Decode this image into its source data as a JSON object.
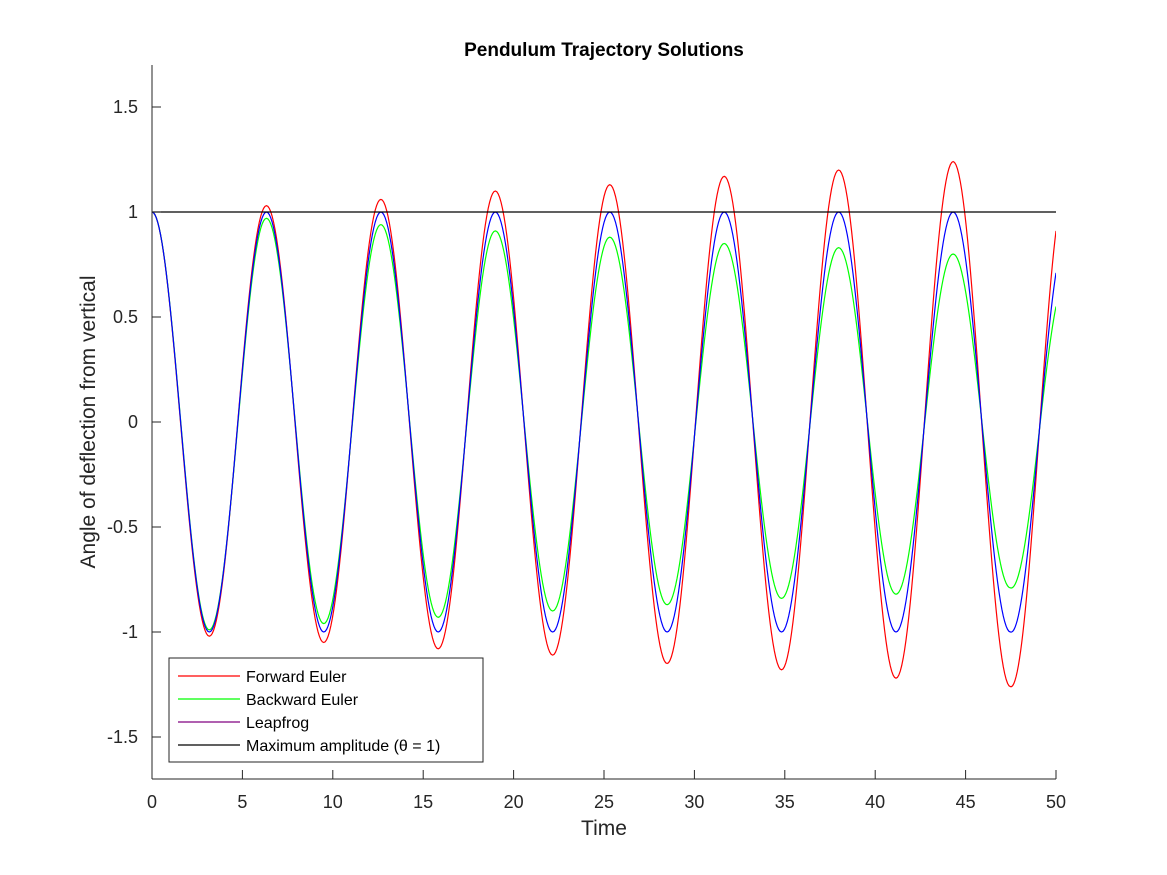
{
  "chart_data": {
    "type": "line",
    "title": "Pendulum Trajectory Solutions",
    "xlabel": "Time",
    "ylabel": "Angle of deflection from vertical",
    "xlim": [
      0,
      50
    ],
    "ylim": [
      -1.7,
      1.7
    ],
    "xticks": [
      0,
      5,
      10,
      15,
      20,
      25,
      30,
      35,
      40,
      45,
      50
    ],
    "yticks": [
      -1.5,
      -1,
      -0.5,
      0,
      0.5,
      1,
      1.5
    ],
    "ytick_labels": [
      "-1.5",
      "-1",
      "-0.5",
      "0",
      "0.5",
      "1",
      "1.5"
    ],
    "xtick_labels": [
      "0",
      "5",
      "10",
      "15",
      "20",
      "25",
      "30",
      "35",
      "40",
      "45",
      "50"
    ],
    "grid": false,
    "legend_position": "bottom-left",
    "period": 6.33,
    "series": [
      {
        "name": "Forward Euler",
        "color": "#ff0000",
        "y_at_x0": 1.0,
        "peaks": [
          {
            "x": 6.33,
            "y": 1.03
          },
          {
            "x": 12.66,
            "y": 1.06
          },
          {
            "x": 18.99,
            "y": 1.1
          },
          {
            "x": 25.32,
            "y": 1.13
          },
          {
            "x": 31.65,
            "y": 1.17
          },
          {
            "x": 37.98,
            "y": 1.2
          },
          {
            "x": 44.31,
            "y": 1.24
          }
        ],
        "troughs": [
          {
            "x": 3.17,
            "y": -1.02
          },
          {
            "x": 9.5,
            "y": -1.05
          },
          {
            "x": 15.83,
            "y": -1.08
          },
          {
            "x": 22.16,
            "y": -1.11
          },
          {
            "x": 28.49,
            "y": -1.15
          },
          {
            "x": 34.82,
            "y": -1.18
          },
          {
            "x": 41.15,
            "y": -1.22
          },
          {
            "x": 47.48,
            "y": -1.26
          }
        ],
        "y_at_x50": 0.91
      },
      {
        "name": "Backward Euler",
        "color": "#00ff00",
        "y_at_x0": 1.0,
        "peaks": [
          {
            "x": 6.33,
            "y": 0.97
          },
          {
            "x": 12.66,
            "y": 0.94
          },
          {
            "x": 18.99,
            "y": 0.91
          },
          {
            "x": 25.32,
            "y": 0.88
          },
          {
            "x": 31.65,
            "y": 0.85
          },
          {
            "x": 37.98,
            "y": 0.83
          },
          {
            "x": 44.31,
            "y": 0.8
          }
        ],
        "troughs": [
          {
            "x": 3.17,
            "y": -0.99
          },
          {
            "x": 9.5,
            "y": -0.96
          },
          {
            "x": 15.83,
            "y": -0.93
          },
          {
            "x": 22.16,
            "y": -0.9
          },
          {
            "x": 28.49,
            "y": -0.87
          },
          {
            "x": 34.82,
            "y": -0.84
          },
          {
            "x": 41.15,
            "y": -0.82
          },
          {
            "x": 47.48,
            "y": -0.79
          }
        ],
        "y_at_x50": 0.55
      },
      {
        "name": "Leapfrog",
        "color": "#0000ff",
        "legend_color": "#800080",
        "y_at_x0": 1.0,
        "peaks": [
          {
            "x": 6.33,
            "y": 1.0
          },
          {
            "x": 12.66,
            "y": 1.0
          },
          {
            "x": 18.99,
            "y": 1.0
          },
          {
            "x": 25.32,
            "y": 1.0
          },
          {
            "x": 31.65,
            "y": 1.0
          },
          {
            "x": 37.98,
            "y": 1.0
          },
          {
            "x": 44.31,
            "y": 1.0
          }
        ],
        "troughs": [
          {
            "x": 3.17,
            "y": -1.0
          },
          {
            "x": 9.5,
            "y": -1.0
          },
          {
            "x": 15.83,
            "y": -1.0
          },
          {
            "x": 22.16,
            "y": -1.0
          },
          {
            "x": 28.49,
            "y": -1.0
          },
          {
            "x": 34.82,
            "y": -1.0
          },
          {
            "x": 41.15,
            "y": -1.0
          },
          {
            "x": 47.48,
            "y": -1.0
          }
        ],
        "y_at_x50": 0.71
      },
      {
        "name": "Maximum amplitude (θ = 1)",
        "color": "#000000",
        "x": [
          0,
          50
        ],
        "y": [
          1,
          1
        ]
      }
    ]
  }
}
